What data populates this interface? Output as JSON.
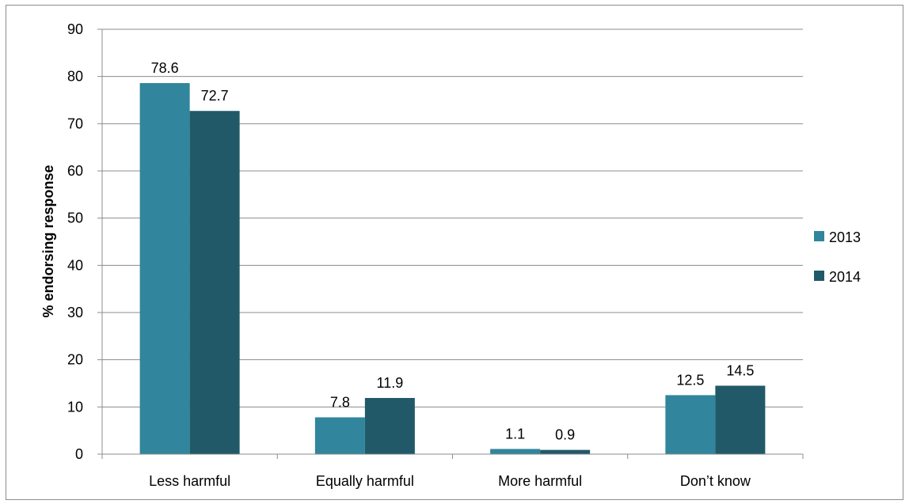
{
  "chart_data": {
    "type": "bar",
    "categories": [
      "Less harmful",
      "Equally harmful",
      "More harmful",
      "Don’t know"
    ],
    "series": [
      {
        "name": "2013",
        "values": [
          78.6,
          7.8,
          1.1,
          12.5
        ],
        "color": "#31859c"
      },
      {
        "name": "2014",
        "values": [
          72.7,
          11.9,
          0.9,
          14.5
        ],
        "color": "#215968"
      }
    ],
    "data_labels": [
      [
        "78.6",
        "7.8",
        "1.1",
        "12.5"
      ],
      [
        "72.7",
        "11.9",
        "0.9",
        "14.5"
      ]
    ],
    "ylabel": "% endorsing response",
    "xlabel": "",
    "title": "",
    "ylim": [
      0,
      90
    ],
    "yticks": [
      0,
      10,
      20,
      30,
      40,
      50,
      60,
      70,
      80,
      90
    ],
    "grid": true,
    "legend_position": "right"
  }
}
